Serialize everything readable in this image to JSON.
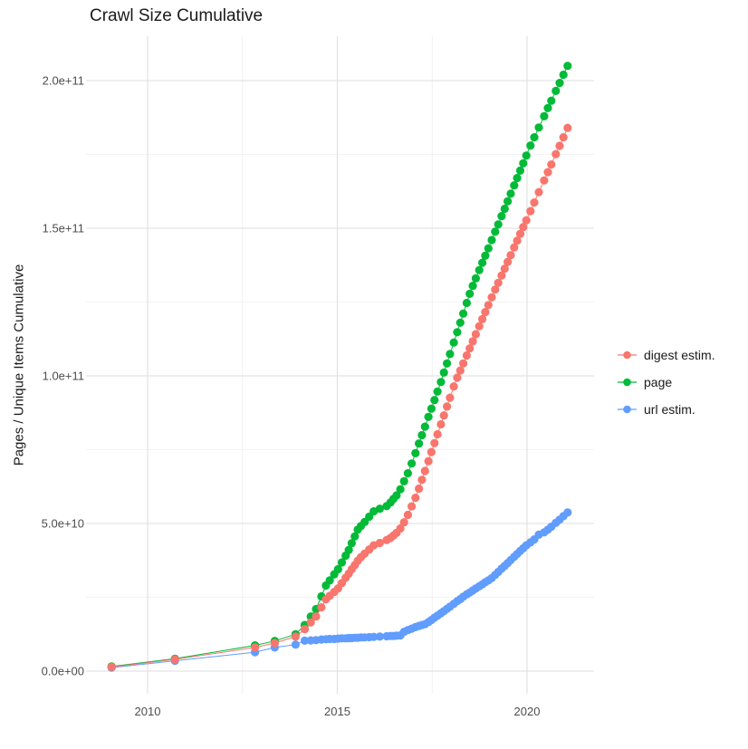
{
  "title": "Crawl Size Cumulative",
  "axes": {
    "y_label": "Pages / Unique Items Cumulative",
    "x_tick_labels": [
      "2010",
      "2015",
      "2020"
    ],
    "y_tick_labels": [
      "0.0e+00",
      "5.0e+10",
      "1.0e+11",
      "1.5e+11",
      "2.0e+11"
    ]
  },
  "legend": {
    "items": [
      {
        "label": "digest estim.",
        "color": "#F8766D"
      },
      {
        "label": "page",
        "color": "#00BA38"
      },
      {
        "label": "url estim.",
        "color": "#619CFF"
      }
    ]
  },
  "colors": {
    "grid_major": "#e3e3e3",
    "grid_minor": "#efefef",
    "tick_label": "#4d4d4d",
    "background": "#ffffff"
  },
  "chart_data": {
    "type": "line",
    "title": "Crawl Size Cumulative",
    "xlabel": "",
    "ylabel": "Pages / Unique Items Cumulative",
    "grid": true,
    "legend_position": "right",
    "x_unit": "decimal_year",
    "value_unit": "billions (1e9)",
    "xlim": [
      2008.38,
      2021.77
    ],
    "ylim_billion": [
      -7.7,
      215
    ],
    "x_major_ticks": [
      2010,
      2015,
      2020
    ],
    "x_minor_ticks": [
      2012.5,
      2017.5
    ],
    "y_major_ticks_billion": [
      0,
      50,
      100,
      150,
      200
    ],
    "y_minor_ticks_billion": [
      25,
      75,
      125,
      175
    ],
    "x": [
      2009.05,
      2010.72,
      2012.83,
      2013.35,
      2013.9,
      2014.14,
      2014.3,
      2014.44,
      2014.58,
      2014.7,
      2014.8,
      2014.92,
      2015.02,
      2015.12,
      2015.22,
      2015.3,
      2015.38,
      2015.46,
      2015.54,
      2015.62,
      2015.72,
      2015.84,
      2015.96,
      2016.12,
      2016.3,
      2016.4,
      2016.48,
      2016.56,
      2016.66,
      2016.76,
      2016.86,
      2016.96,
      2017.06,
      2017.15,
      2017.23,
      2017.31,
      2017.4,
      2017.48,
      2017.56,
      2017.64,
      2017.73,
      2017.81,
      2017.89,
      2017.97,
      2018.07,
      2018.16,
      2018.24,
      2018.32,
      2018.41,
      2018.49,
      2018.57,
      2018.65,
      2018.74,
      2018.82,
      2018.9,
      2018.98,
      2019.07,
      2019.16,
      2019.24,
      2019.33,
      2019.41,
      2019.49,
      2019.57,
      2019.66,
      2019.74,
      2019.82,
      2019.9,
      2019.98,
      2020.09,
      2020.19,
      2020.31,
      2020.45,
      2020.55,
      2020.64,
      2020.76,
      2020.86,
      2020.96,
      2021.07
    ],
    "series": [
      {
        "name": "digest estim.",
        "color": "#F8766D",
        "values_billion": [
          1.4,
          4.0,
          8.0,
          9.5,
          11.7,
          14.2,
          16.5,
          18.5,
          21.6,
          24.3,
          25.5,
          26.8,
          28.0,
          29.8,
          31.6,
          33.0,
          34.5,
          35.9,
          37.4,
          38.6,
          39.8,
          41.2,
          42.6,
          43.4,
          44.4,
          45.1,
          45.9,
          46.8,
          48.3,
          50.4,
          52.9,
          55.8,
          58.7,
          61.8,
          64.8,
          67.8,
          71.1,
          74.2,
          77.2,
          80.2,
          83.6,
          86.6,
          89.6,
          92.6,
          96.4,
          99.4,
          101.8,
          104.2,
          106.9,
          109.3,
          111.7,
          114.1,
          116.8,
          119.2,
          121.6,
          124.0,
          126.6,
          129.2,
          131.5,
          134.0,
          136.3,
          138.6,
          140.9,
          143.5,
          145.8,
          148.1,
          150.4,
          152.7,
          155.8,
          158.7,
          162.2,
          166.2,
          169.0,
          171.6,
          175.1,
          177.9,
          180.8,
          184.0
        ]
      },
      {
        "name": "page",
        "color": "#00BA38",
        "values_billion": [
          1.6,
          4.2,
          8.7,
          10.2,
          12.5,
          15.6,
          18.5,
          21.0,
          25.3,
          29.0,
          30.7,
          32.8,
          34.5,
          36.8,
          39.1,
          41.0,
          43.3,
          45.6,
          47.9,
          49.1,
          50.5,
          52.3,
          54.1,
          55.0,
          55.9,
          57.1,
          58.3,
          59.5,
          61.6,
          64.3,
          67.0,
          70.3,
          73.8,
          77.1,
          79.9,
          82.8,
          86.1,
          88.9,
          91.8,
          94.7,
          97.9,
          101.1,
          104.2,
          107.4,
          111.3,
          114.8,
          118.0,
          121.1,
          124.7,
          127.8,
          130.5,
          133.0,
          135.8,
          138.3,
          140.7,
          143.2,
          146.0,
          148.8,
          151.3,
          154.1,
          156.6,
          159.1,
          161.7,
          164.5,
          167.0,
          169.5,
          172.0,
          174.6,
          178.0,
          180.8,
          184.1,
          187.9,
          190.7,
          193.2,
          196.5,
          199.2,
          202.0,
          205.0
        ]
      },
      {
        "name": "url estim.",
        "color": "#619CFF",
        "values_billion": [
          1.2,
          3.5,
          6.4,
          8.0,
          9.0,
          10.3,
          10.4,
          10.5,
          10.7,
          10.8,
          10.9,
          10.9,
          11.0,
          11.1,
          11.1,
          11.2,
          11.2,
          11.3,
          11.3,
          11.4,
          11.4,
          11.5,
          11.6,
          11.7,
          11.8,
          11.9,
          11.9,
          12.0,
          12.1,
          13.3,
          13.9,
          14.4,
          14.9,
          15.3,
          15.6,
          15.9,
          16.6,
          17.3,
          18.1,
          18.8,
          19.6,
          20.3,
          21.1,
          21.8,
          22.8,
          23.7,
          24.4,
          25.2,
          26.0,
          26.6,
          27.3,
          28.0,
          28.7,
          29.4,
          30.1,
          30.7,
          31.5,
          32.6,
          33.6,
          34.7,
          35.6,
          36.6,
          37.6,
          38.7,
          39.7,
          40.7,
          41.6,
          42.6,
          43.6,
          44.6,
          46.2,
          47.0,
          47.9,
          48.9,
          50.2,
          51.3,
          52.5,
          53.7
        ]
      }
    ]
  }
}
